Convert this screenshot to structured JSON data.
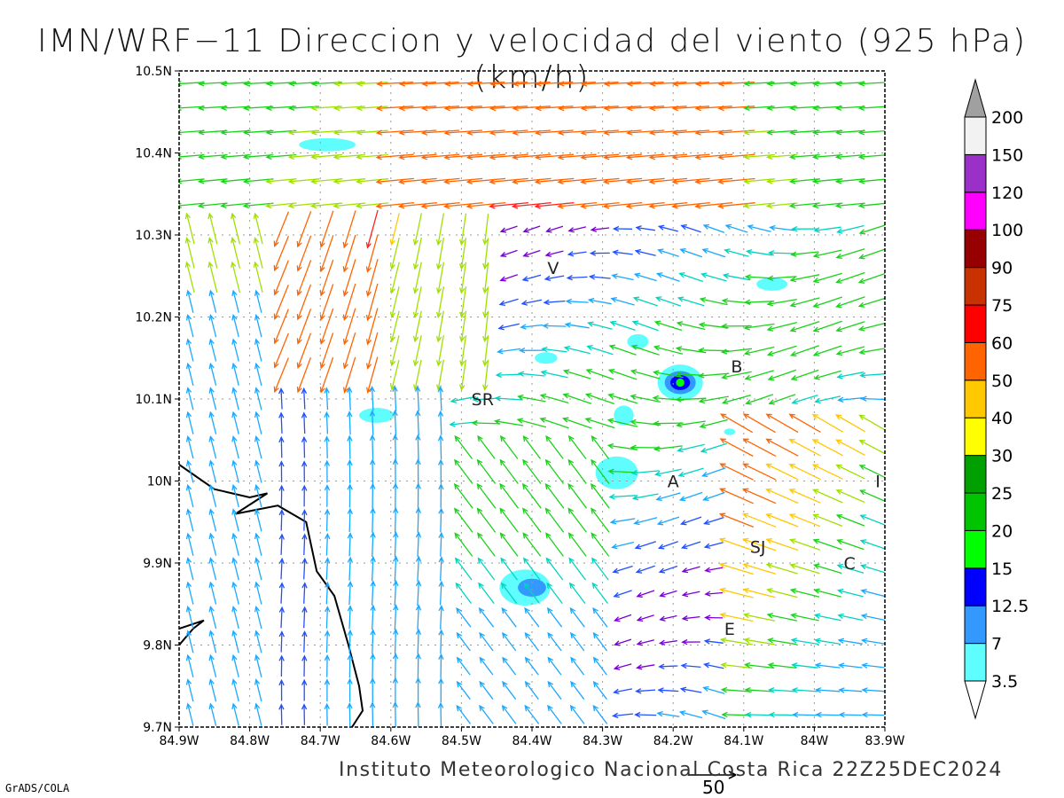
{
  "title": "IMN/WRF−11 Direccion y velocidad del viento (925 hPa)(km/h)",
  "footer": "Instituto Meteorologico Nacional Costa Rica  22Z25DEC2024",
  "software": "GrADS/COLA",
  "reference_vector": {
    "value": "50"
  },
  "colors": {
    "frame": "#000000",
    "grid": "#9a9a9a",
    "coast": "#000000"
  },
  "map": {
    "lon_range": [
      -84.9,
      -83.9
    ],
    "lat_range": [
      9.7,
      10.5
    ],
    "x_ticks": [
      "84.9W",
      "84.8W",
      "84.7W",
      "84.6W",
      "84.5W",
      "84.4W",
      "84.3W",
      "84.2W",
      "84.1W",
      "84W",
      "83.9W"
    ],
    "y_ticks": [
      "9.7N",
      "9.8N",
      "9.9N",
      "10N",
      "10.1N",
      "10.2N",
      "10.3N",
      "10.4N",
      "10.5N"
    ],
    "grid": "dotted"
  },
  "city_labels": [
    {
      "name": "V",
      "lon": -84.37,
      "lat": 10.26
    },
    {
      "name": "B",
      "lon": -84.11,
      "lat": 10.14
    },
    {
      "name": "SR",
      "lon": -84.47,
      "lat": 10.1
    },
    {
      "name": "A",
      "lon": -84.2,
      "lat": 10.0
    },
    {
      "name": "I",
      "lon": -83.91,
      "lat": 10.0
    },
    {
      "name": "SJ",
      "lon": -84.08,
      "lat": 9.92
    },
    {
      "name": "C",
      "lon": -83.95,
      "lat": 9.9
    },
    {
      "name": "E",
      "lon": -84.12,
      "lat": 9.82
    }
  ],
  "legend": {
    "levels": [
      "3.5",
      "7",
      "12.5",
      "15",
      "20",
      "25",
      "30",
      "40",
      "50",
      "60",
      "75",
      "90",
      "100",
      "120",
      "150",
      "200"
    ],
    "colors": [
      "#5ffdfd",
      "#3399ff",
      "#0000ff",
      "#00ff00",
      "#00c400",
      "#00a000",
      "#ffff00",
      "#ffc800",
      "#ff6400",
      "#ff0000",
      "#c83200",
      "#960000",
      "#ff00ff",
      "#9a30c8",
      "#f2f2f2",
      "#a0a0a0"
    ]
  },
  "vector_colors": {
    "calm": "#7a00d6",
    "light": "#2050ff",
    "moderate": "#1aa8ff",
    "fresh": "#00d4c0",
    "strong": "#19d219",
    "very_strong": "#a0e000",
    "gale": "#ffc800",
    "storm": "#ff6400",
    "extreme": "#ff2020"
  },
  "shaded_areas": [
    {
      "lon": -84.69,
      "lat": 10.41,
      "rx": 0.04,
      "ry": 0.008,
      "level": "3.5"
    },
    {
      "lon": -84.38,
      "lat": 10.15,
      "rx": 0.016,
      "ry": 0.007,
      "level": "3.5"
    },
    {
      "lon": -84.62,
      "lat": 10.08,
      "rx": 0.025,
      "ry": 0.009,
      "level": "3.5"
    },
    {
      "lon": -84.25,
      "lat": 10.17,
      "rx": 0.015,
      "ry": 0.009,
      "level": "3.5"
    },
    {
      "lon": -84.27,
      "lat": 10.08,
      "rx": 0.014,
      "ry": 0.012,
      "level": "3.5"
    },
    {
      "lon": -84.06,
      "lat": 10.24,
      "rx": 0.022,
      "ry": 0.008,
      "level": "3.5"
    },
    {
      "lon": -84.28,
      "lat": 10.01,
      "rx": 0.03,
      "ry": 0.02,
      "level": "3.5"
    },
    {
      "lon": -84.19,
      "lat": 10.12,
      "rx": 0.032,
      "ry": 0.022,
      "level": "3.5"
    },
    {
      "lon": -84.19,
      "lat": 10.12,
      "rx": 0.022,
      "ry": 0.014,
      "level": "7"
    },
    {
      "lon": -84.19,
      "lat": 10.12,
      "rx": 0.014,
      "ry": 0.009,
      "level": "12.5"
    },
    {
      "lon": -84.19,
      "lat": 10.12,
      "rx": 0.006,
      "ry": 0.005,
      "level": "15"
    },
    {
      "lon": -84.41,
      "lat": 9.87,
      "rx": 0.036,
      "ry": 0.022,
      "level": "3.5"
    },
    {
      "lon": -84.4,
      "lat": 9.87,
      "rx": 0.02,
      "ry": 0.011,
      "level": "7"
    },
    {
      "lon": -84.12,
      "lat": 10.06,
      "rx": 0.008,
      "ry": 0.004,
      "level": "3.5"
    }
  ],
  "coastline": [
    [
      [
        -84.9,
        10.02
      ],
      [
        -84.85,
        9.99
      ],
      [
        -84.8,
        9.98
      ],
      [
        -84.775,
        9.985
      ],
      [
        -84.82,
        9.96
      ],
      [
        -84.76,
        9.97
      ],
      [
        -84.72,
        9.95
      ],
      [
        -84.705,
        9.89
      ],
      [
        -84.68,
        9.86
      ],
      [
        -84.66,
        9.8
      ],
      [
        -84.645,
        9.75
      ],
      [
        -84.64,
        9.72
      ],
      [
        -84.655,
        9.7
      ]
    ],
    [
      [
        -84.9,
        9.8
      ],
      [
        -84.88,
        9.82
      ],
      [
        -84.865,
        9.83
      ],
      [
        -84.9,
        9.82
      ]
    ]
  ]
}
